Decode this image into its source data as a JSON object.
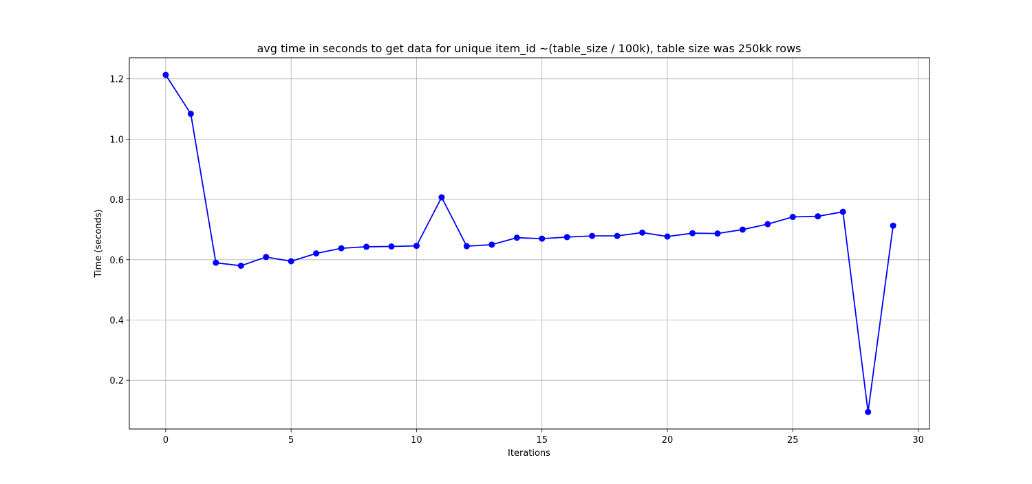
{
  "chart_data": {
    "type": "line",
    "title": "avg time in seconds to get data for unique item_id ~(table_size / 100k), table size was 250kk rows",
    "xlabel": "Iterations",
    "ylabel": "Time (seconds)",
    "xlim": [
      -1.45,
      30.45
    ],
    "ylim": [
      0.0385,
      1.27
    ],
    "xticks": [
      0,
      5,
      10,
      15,
      20,
      25,
      30
    ],
    "yticks": [
      0.2,
      0.4,
      0.6,
      0.8,
      1.0,
      1.2
    ],
    "ytick_labels": [
      "0.2",
      "0.4",
      "0.6",
      "0.8",
      "1.0",
      "1.2"
    ],
    "grid": true,
    "legend": "none",
    "series": [
      {
        "color": "#0000ff",
        "marker": "circle",
        "x": [
          0,
          1,
          2,
          3,
          4,
          5,
          6,
          7,
          8,
          9,
          10,
          11,
          12,
          13,
          14,
          15,
          16,
          17,
          18,
          19,
          20,
          21,
          22,
          23,
          24,
          25,
          26,
          27,
          28,
          29
        ],
        "y": [
          1.213,
          1.084,
          0.59,
          0.58,
          0.609,
          0.595,
          0.621,
          0.638,
          0.643,
          0.644,
          0.646,
          0.807,
          0.645,
          0.65,
          0.673,
          0.67,
          0.675,
          0.679,
          0.679,
          0.69,
          0.677,
          0.688,
          0.687,
          0.7,
          0.718,
          0.742,
          0.744,
          0.759,
          0.095,
          0.713
        ]
      }
    ]
  }
}
